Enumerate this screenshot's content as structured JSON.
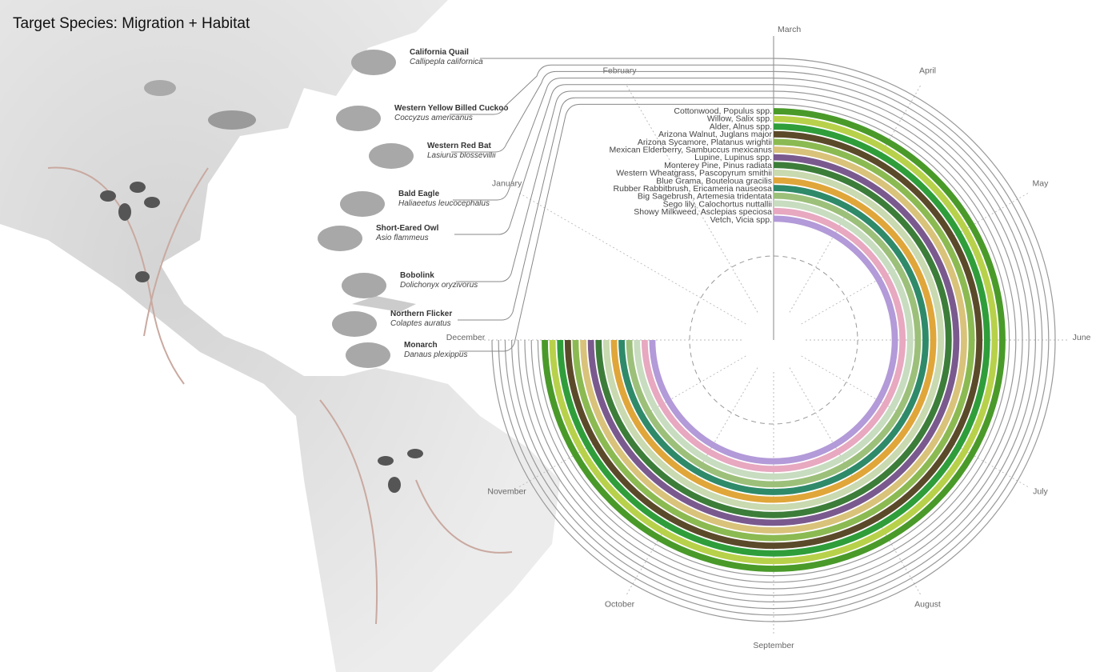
{
  "title": "Target Species: Migration + Habitat",
  "months": [
    "March",
    "April",
    "May",
    "June",
    "July",
    "August",
    "September",
    "October",
    "November",
    "December",
    "January",
    "February"
  ],
  "species": [
    {
      "name": "California Quail",
      "latin": "Callipepla californica"
    },
    {
      "name": "Western Yellow Billed Cuckoo",
      "latin": "Coccyzus americanus"
    },
    {
      "name": "Western Red Bat",
      "latin": "Lasiurus blossevillii"
    },
    {
      "name": "Bald Eagle",
      "latin": "Haliaeetus leucocephalus"
    },
    {
      "name": "Short-Eared Owl",
      "latin": "Asio flammeus"
    },
    {
      "name": "Bobolink",
      "latin": "Dolichonyx oryzivorus"
    },
    {
      "name": "Northern Flicker",
      "latin": "Colaptes auratus"
    },
    {
      "name": "Monarch",
      "latin": "Danaus plexippus"
    }
  ],
  "plants": [
    {
      "name": "Cottonwood, Populus spp.",
      "color": "#4a9a2a"
    },
    {
      "name": "Willow, Salix spp.",
      "color": "#b8d14a"
    },
    {
      "name": "Alder, Alnus spp.",
      "color": "#2f9e3a"
    },
    {
      "name": "Arizona Walnut, Juglans major",
      "color": "#5b4a2a"
    },
    {
      "name": "Arizona Sycamore, Platanus wrightii",
      "color": "#8cba52"
    },
    {
      "name": "Mexican Elderberry, Sambuccus mexicanus",
      "color": "#d9c27a"
    },
    {
      "name": "Lupine, Lupinus spp.",
      "color": "#7a5a8e"
    },
    {
      "name": "Monterey Pine, Pinus radiata",
      "color": "#3d7d3a"
    },
    {
      "name": "Western Wheatgrass, Pascopyrum smithii",
      "color": "#c9d9b0"
    },
    {
      "name": "Blue Grama, Bouteloua gracilis",
      "color": "#e0a63a"
    },
    {
      "name": "Rubber Rabbitbrush, Ericameria nauseosa",
      "color": "#2f8a6a"
    },
    {
      "name": "Big Sagebrush, Artemesia tridentata",
      "color": "#9cc07a"
    },
    {
      "name": "Sego lily, Calochortus nuttallii",
      "color": "#c8dcc0"
    },
    {
      "name": "Showy Milkweed, Asclepias speciosa",
      "color": "#e7a8c0"
    },
    {
      "name": "Vetch, Vicia spp.",
      "color": "#b39ad8"
    }
  ]
}
